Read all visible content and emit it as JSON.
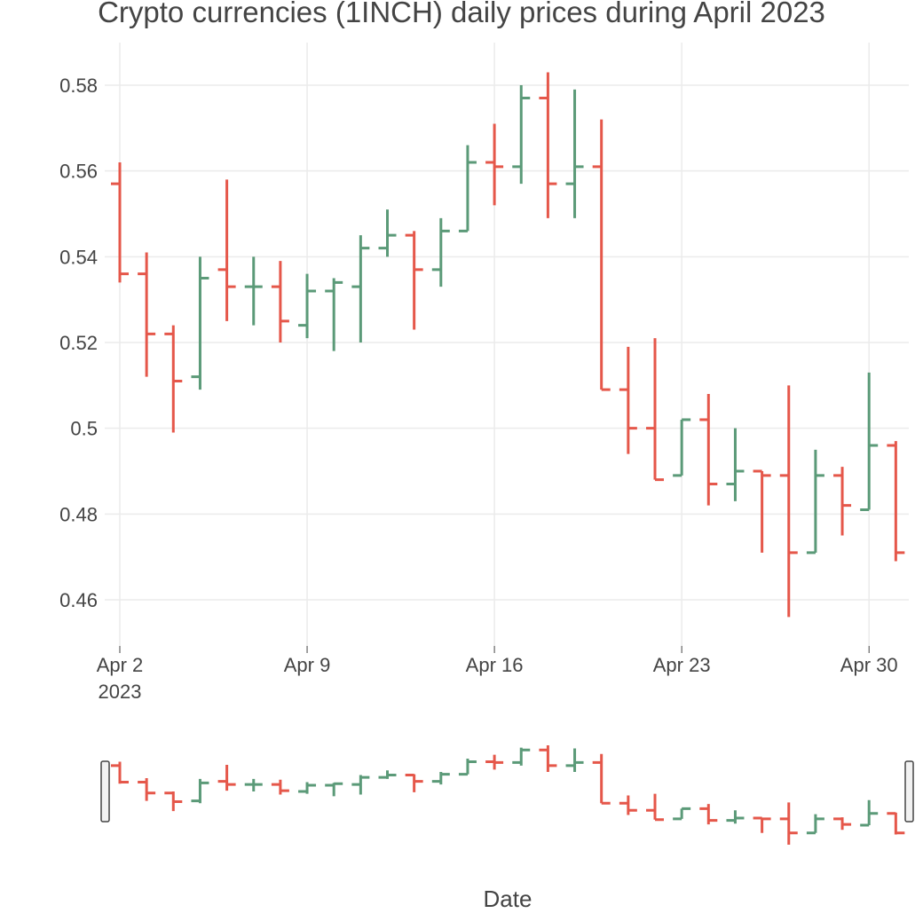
{
  "chart_data": {
    "type": "ohlc",
    "title": "Crypto currencies (1INCH) daily prices during April 2023",
    "xlabel": "Date",
    "ylabel": "",
    "x_range": [
      "2023-04-02",
      "2023-05-01"
    ],
    "ylim": [
      0.45,
      0.59
    ],
    "y_ticks": [
      0.46,
      0.48,
      0.5,
      0.52,
      0.54,
      0.56,
      0.58
    ],
    "y_tick_labels": [
      "0.46",
      "0.48",
      "0.5",
      "0.52",
      "0.54",
      "0.56",
      "0.58"
    ],
    "x_ticks": [
      {
        "date": "2023-04-02",
        "label": "Apr 2",
        "sublabel": "2023"
      },
      {
        "date": "2023-04-09",
        "label": "Apr 9",
        "sublabel": ""
      },
      {
        "date": "2023-04-16",
        "label": "Apr 16",
        "sublabel": ""
      },
      {
        "date": "2023-04-23",
        "label": "Apr 23",
        "sublabel": ""
      },
      {
        "date": "2023-04-30",
        "label": "Apr 30",
        "sublabel": ""
      }
    ],
    "grid": true,
    "increasing_color": "#5b9a78",
    "decreasing_color": "#e5574a",
    "rangeslider": true,
    "data": [
      {
        "date": "2023-04-02",
        "open": 0.557,
        "high": 0.562,
        "low": 0.534,
        "close": 0.536
      },
      {
        "date": "2023-04-03",
        "open": 0.536,
        "high": 0.541,
        "low": 0.512,
        "close": 0.522
      },
      {
        "date": "2023-04-04",
        "open": 0.522,
        "high": 0.524,
        "low": 0.499,
        "close": 0.511
      },
      {
        "date": "2023-04-05",
        "open": 0.512,
        "high": 0.54,
        "low": 0.509,
        "close": 0.535
      },
      {
        "date": "2023-04-06",
        "open": 0.537,
        "high": 0.558,
        "low": 0.525,
        "close": 0.533
      },
      {
        "date": "2023-04-07",
        "open": 0.533,
        "high": 0.54,
        "low": 0.524,
        "close": 0.533
      },
      {
        "date": "2023-04-08",
        "open": 0.533,
        "high": 0.539,
        "low": 0.52,
        "close": 0.525
      },
      {
        "date": "2023-04-09",
        "open": 0.524,
        "high": 0.536,
        "low": 0.521,
        "close": 0.532
      },
      {
        "date": "2023-04-10",
        "open": 0.532,
        "high": 0.535,
        "low": 0.518,
        "close": 0.534
      },
      {
        "date": "2023-04-11",
        "open": 0.533,
        "high": 0.545,
        "low": 0.52,
        "close": 0.542
      },
      {
        "date": "2023-04-12",
        "open": 0.542,
        "high": 0.551,
        "low": 0.54,
        "close": 0.545
      },
      {
        "date": "2023-04-13",
        "open": 0.545,
        "high": 0.546,
        "low": 0.523,
        "close": 0.537
      },
      {
        "date": "2023-04-14",
        "open": 0.537,
        "high": 0.549,
        "low": 0.533,
        "close": 0.546
      },
      {
        "date": "2023-04-15",
        "open": 0.546,
        "high": 0.566,
        "low": 0.546,
        "close": 0.562
      },
      {
        "date": "2023-04-16",
        "open": 0.562,
        "high": 0.571,
        "low": 0.552,
        "close": 0.561
      },
      {
        "date": "2023-04-17",
        "open": 0.561,
        "high": 0.58,
        "low": 0.557,
        "close": 0.577
      },
      {
        "date": "2023-04-18",
        "open": 0.577,
        "high": 0.583,
        "low": 0.549,
        "close": 0.557
      },
      {
        "date": "2023-04-19",
        "open": 0.557,
        "high": 0.579,
        "low": 0.549,
        "close": 0.561
      },
      {
        "date": "2023-04-20",
        "open": 0.561,
        "high": 0.572,
        "low": 0.509,
        "close": 0.509
      },
      {
        "date": "2023-04-21",
        "open": 0.509,
        "high": 0.519,
        "low": 0.494,
        "close": 0.5
      },
      {
        "date": "2023-04-22",
        "open": 0.5,
        "high": 0.521,
        "low": 0.488,
        "close": 0.488
      },
      {
        "date": "2023-04-23",
        "open": 0.489,
        "high": 0.502,
        "low": 0.489,
        "close": 0.502
      },
      {
        "date": "2023-04-24",
        "open": 0.502,
        "high": 0.508,
        "low": 0.482,
        "close": 0.487
      },
      {
        "date": "2023-04-25",
        "open": 0.487,
        "high": 0.5,
        "low": 0.483,
        "close": 0.49
      },
      {
        "date": "2023-04-26",
        "open": 0.49,
        "high": 0.49,
        "low": 0.471,
        "close": 0.489
      },
      {
        "date": "2023-04-27",
        "open": 0.489,
        "high": 0.51,
        "low": 0.456,
        "close": 0.471
      },
      {
        "date": "2023-04-28",
        "open": 0.471,
        "high": 0.495,
        "low": 0.471,
        "close": 0.489
      },
      {
        "date": "2023-04-29",
        "open": 0.489,
        "high": 0.491,
        "low": 0.475,
        "close": 0.482
      },
      {
        "date": "2023-04-30",
        "open": 0.481,
        "high": 0.513,
        "low": 0.481,
        "close": 0.496
      },
      {
        "date": "2023-05-01",
        "open": 0.496,
        "high": 0.497,
        "low": 0.469,
        "close": 0.471
      }
    ]
  }
}
